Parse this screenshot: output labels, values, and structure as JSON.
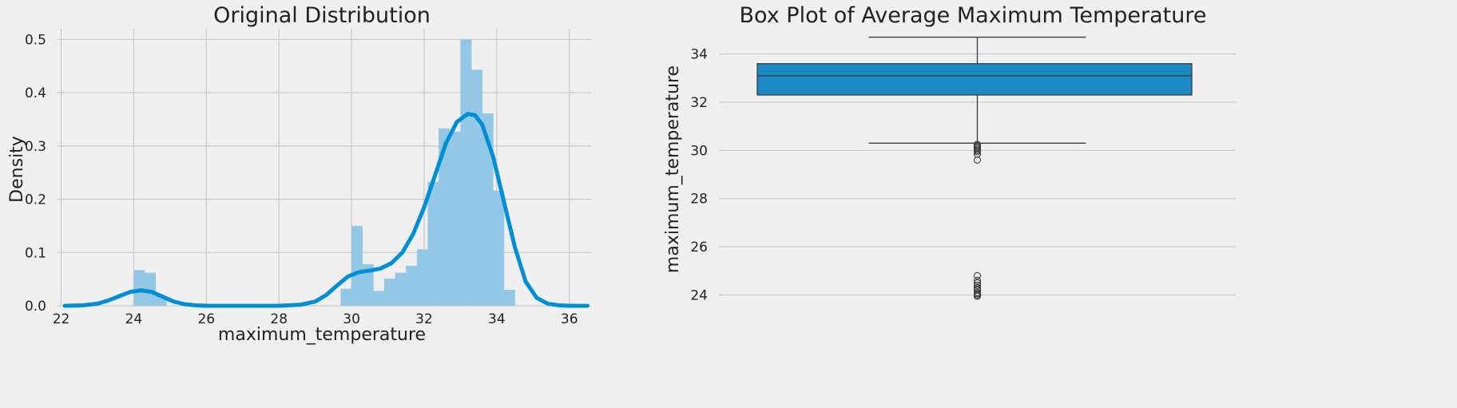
{
  "chart_data": [
    {
      "type": "histogram+kde",
      "title": "Original Distribution",
      "xlabel": "maximum_temperature",
      "ylabel": "Density",
      "xlim": [
        21.9,
        36.6
      ],
      "ylim": [
        0,
        0.52
      ],
      "x_ticks": [
        22,
        24,
        26,
        28,
        30,
        32,
        34,
        36
      ],
      "y_ticks": [
        0.0,
        0.1,
        0.2,
        0.3,
        0.4,
        0.5
      ],
      "x_tick_labels": [
        "22",
        "24",
        "26",
        "28",
        "30",
        "32",
        "34",
        "36"
      ],
      "y_tick_labels": [
        "0.0",
        "0.1",
        "0.2",
        "0.3",
        "0.4",
        "0.5"
      ],
      "grid": true,
      "bar_color": "#92c8e6",
      "line_color": "#008fd5",
      "bin_width": 0.3,
      "bins": [
        {
          "x": 24.0,
          "density": 0.067
        },
        {
          "x": 24.3,
          "density": 0.062
        },
        {
          "x": 24.6,
          "density": 0.018
        },
        {
          "x": 29.7,
          "density": 0.032
        },
        {
          "x": 30.0,
          "density": 0.15
        },
        {
          "x": 30.3,
          "density": 0.078
        },
        {
          "x": 30.6,
          "density": 0.028
        },
        {
          "x": 30.9,
          "density": 0.051
        },
        {
          "x": 31.2,
          "density": 0.062
        },
        {
          "x": 31.5,
          "density": 0.075
        },
        {
          "x": 31.8,
          "density": 0.106
        },
        {
          "x": 32.1,
          "density": 0.233
        },
        {
          "x": 32.4,
          "density": 0.333
        },
        {
          "x": 32.7,
          "density": 0.327
        },
        {
          "x": 33.0,
          "density": 0.5
        },
        {
          "x": 33.3,
          "density": 0.443
        },
        {
          "x": 33.6,
          "density": 0.361
        },
        {
          "x": 33.9,
          "density": 0.216
        },
        {
          "x": 34.2,
          "density": 0.03
        }
      ],
      "kde": {
        "x": [
          22.1,
          22.6,
          23.0,
          23.3,
          23.6,
          23.9,
          24.2,
          24.5,
          24.8,
          25.1,
          25.4,
          25.7,
          26.0,
          27.0,
          28.0,
          28.6,
          29.0,
          29.3,
          29.6,
          29.9,
          30.2,
          30.5,
          30.8,
          31.1,
          31.4,
          31.7,
          32.0,
          32.3,
          32.6,
          32.9,
          33.2,
          33.4,
          33.6,
          33.9,
          34.2,
          34.5,
          34.8,
          35.1,
          35.4,
          35.7,
          36.0,
          36.5
        ],
        "y": [
          0.0,
          0.001,
          0.004,
          0.01,
          0.018,
          0.026,
          0.029,
          0.026,
          0.017,
          0.008,
          0.003,
          0.001,
          0.0,
          0.0,
          0.0,
          0.002,
          0.008,
          0.02,
          0.038,
          0.055,
          0.063,
          0.066,
          0.07,
          0.08,
          0.1,
          0.135,
          0.185,
          0.245,
          0.305,
          0.345,
          0.36,
          0.358,
          0.34,
          0.28,
          0.195,
          0.11,
          0.045,
          0.015,
          0.004,
          0.001,
          0.0,
          0.0
        ]
      }
    },
    {
      "type": "box",
      "title": "Box Plot of Average Maximum Temperature",
      "xlabel": "",
      "ylabel": "maximum_temperature",
      "ylim": [
        23.55,
        35.05
      ],
      "y_ticks": [
        24,
        26,
        28,
        30,
        32,
        34
      ],
      "y_tick_labels": [
        "24",
        "26",
        "28",
        "30",
        "32",
        "34"
      ],
      "grid": true,
      "box_color": "#1b8ac4",
      "whisker_low": 30.3,
      "q1": 32.3,
      "median": 33.1,
      "q3": 33.6,
      "whisker_high": 34.7,
      "outliers": [
        30.25,
        30.2,
        30.15,
        30.1,
        30.05,
        30.0,
        29.95,
        29.85,
        29.6,
        24.8,
        24.6,
        24.5,
        24.4,
        24.3,
        24.25,
        24.2,
        24.1,
        24.05,
        24.0,
        23.95
      ]
    }
  ]
}
